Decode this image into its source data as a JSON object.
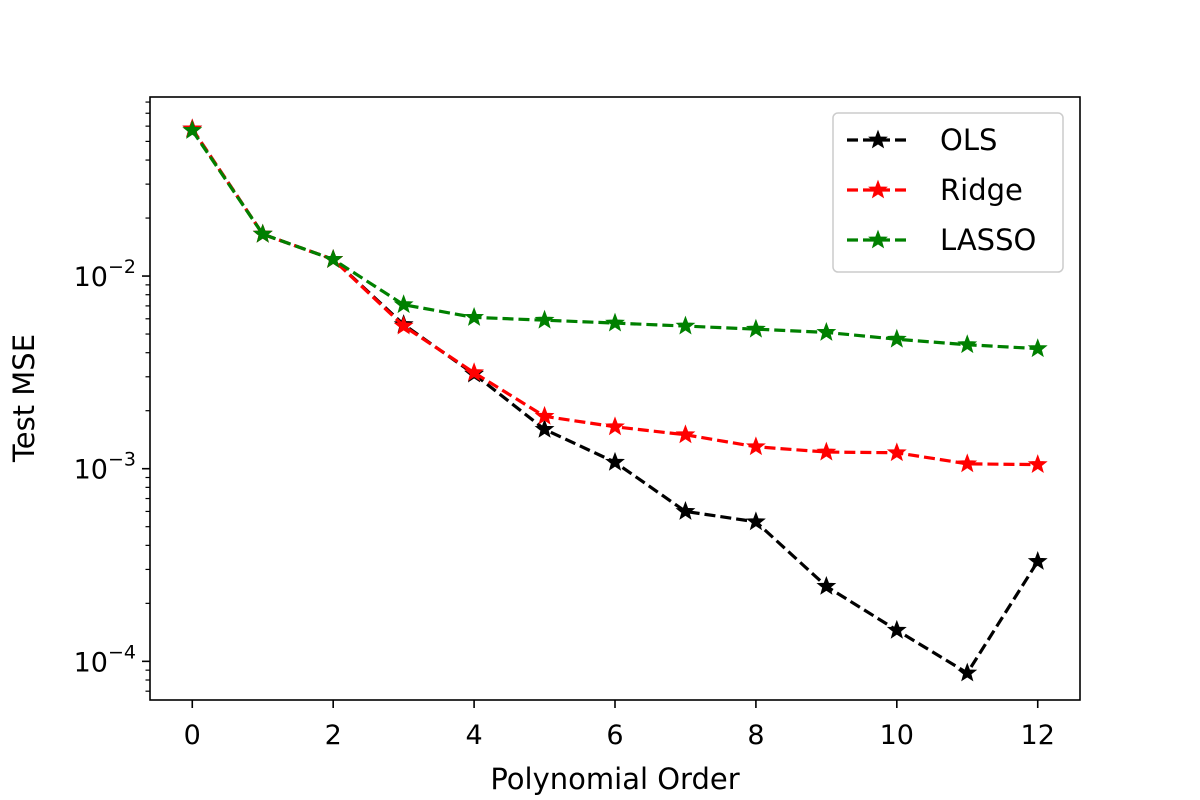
{
  "chart_data": {
    "type": "line",
    "title": "",
    "xlabel": "Polynomial Order",
    "ylabel": "Test MSE",
    "yscale": "log",
    "xlim": [
      -0.6,
      12.6
    ],
    "ylim": [
      6.3e-05,
      0.085
    ],
    "grid": false,
    "legend_position": "top-right",
    "x": [
      0,
      1,
      2,
      3,
      4,
      5,
      6,
      7,
      8,
      9,
      10,
      11,
      12
    ],
    "x_ticks": [
      0,
      2,
      4,
      6,
      8,
      10,
      12
    ],
    "x_tick_labels": [
      "0",
      "2",
      "4",
      "6",
      "8",
      "10",
      "12"
    ],
    "y_ticks": [
      {
        "value": 0.01,
        "base": "10",
        "exp": "−2"
      },
      {
        "value": 0.001,
        "base": "10",
        "exp": "−3"
      },
      {
        "value": 0.0001,
        "base": "10",
        "exp": "−4"
      }
    ],
    "series": [
      {
        "name": "OLS",
        "color": "#000000",
        "linestyle": "dashed",
        "marker": "star",
        "values": [
          0.058,
          0.0165,
          0.0122,
          0.0056,
          0.0031,
          0.0016,
          0.00108,
          0.0006,
          0.00053,
          0.000245,
          0.000145,
          8.7e-05,
          0.00033
        ]
      },
      {
        "name": "Ridge",
        "color": "#ff0000",
        "linestyle": "dashed",
        "marker": "star",
        "values": [
          0.058,
          0.0165,
          0.0122,
          0.0055,
          0.00315,
          0.00187,
          0.00165,
          0.0015,
          0.0013,
          0.00122,
          0.00121,
          0.00106,
          0.00105
        ]
      },
      {
        "name": "LASSO",
        "color": "#008000",
        "linestyle": "dashed",
        "marker": "star",
        "values": [
          0.057,
          0.0165,
          0.0122,
          0.0071,
          0.0061,
          0.0059,
          0.0057,
          0.0055,
          0.0053,
          0.0051,
          0.0047,
          0.0044,
          0.0042
        ]
      }
    ]
  }
}
